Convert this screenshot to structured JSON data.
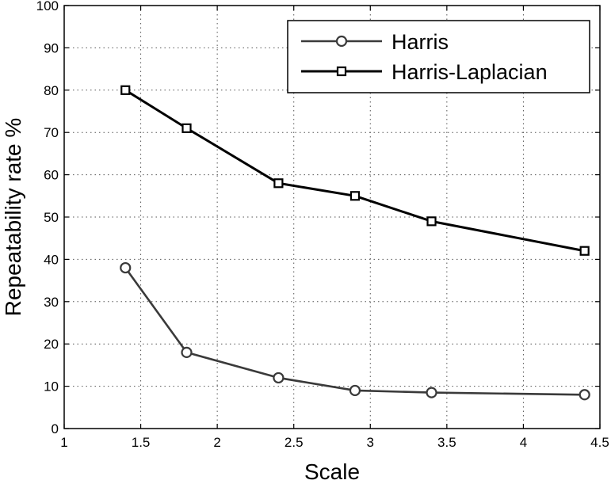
{
  "chart_data": {
    "type": "line",
    "xlabel": "Scale",
    "ylabel": "Repeatability rate %",
    "xlim": [
      1,
      4.5
    ],
    "ylim": [
      0,
      100
    ],
    "xticks": [
      "1",
      "1.5",
      "2",
      "2.5",
      "3",
      "3.5",
      "4",
      "4.5"
    ],
    "yticks": [
      "0",
      "10",
      "20",
      "30",
      "40",
      "50",
      "60",
      "70",
      "80",
      "90",
      "100"
    ],
    "grid": true,
    "legend_position": "top-right",
    "series": [
      {
        "name": "Harris",
        "marker": "circle",
        "color": "#3a3a3a",
        "x": [
          1.4,
          1.8,
          2.4,
          2.9,
          3.4,
          4.4
        ],
        "y": [
          38,
          18,
          12,
          9,
          8.5,
          8
        ]
      },
      {
        "name": "Harris-Laplacian",
        "marker": "square",
        "color": "#000000",
        "x": [
          1.4,
          1.8,
          2.4,
          2.9,
          3.4,
          4.4
        ],
        "y": [
          80,
          71,
          58,
          55,
          49,
          42
        ]
      }
    ]
  }
}
